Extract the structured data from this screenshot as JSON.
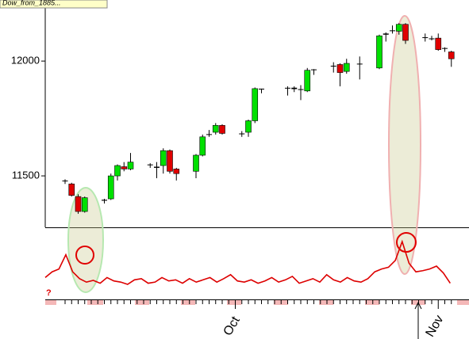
{
  "chart_data": {
    "type": "candlestick",
    "title": "Dow_from_1885...",
    "categories": [
      null,
      null,
      null,
      null,
      null,
      null,
      null,
      null,
      null,
      null,
      null,
      null,
      null,
      null,
      null,
      null,
      null,
      null,
      null,
      null,
      null,
      null,
      null,
      null,
      null,
      null,
      "Oct",
      null,
      null,
      null,
      null,
      null,
      null,
      null,
      null,
      null,
      null,
      null,
      null,
      null,
      null,
      null,
      null,
      null,
      null,
      null,
      null,
      null,
      null,
      null,
      null,
      null,
      null,
      null,
      null,
      null,
      null,
      "Nov",
      null,
      null
    ],
    "open": [
      11475,
      11465,
      11410,
      11345,
      null,
      null,
      11392,
      11400,
      11500,
      11540,
      11530,
      null,
      null,
      11545,
      11540,
      11545,
      11610,
      11530,
      null,
      null,
      11520,
      11590,
      11680,
      11690,
      11720,
      null,
      null,
      11680,
      11690,
      11740,
      11875,
      null,
      null,
      null,
      11880,
      11878,
      11874,
      11870,
      11960,
      null,
      null,
      11975,
      11985,
      11955,
      null,
      11985,
      null,
      null,
      11970,
      12115,
      12130,
      12130,
      12160,
      null,
      null,
      12100,
      12095,
      12100,
      12055,
      12040
    ],
    "high": [
      11485,
      11470,
      11420,
      11410,
      null,
      null,
      11400,
      11510,
      11550,
      11560,
      11600,
      null,
      null,
      11555,
      11560,
      11620,
      11615,
      11535,
      null,
      null,
      11595,
      11680,
      11700,
      11730,
      11725,
      null,
      null,
      11695,
      11745,
      11885,
      11880,
      null,
      null,
      null,
      11890,
      11890,
      11895,
      11970,
      11965,
      null,
      null,
      11995,
      11990,
      12010,
      null,
      12020,
      null,
      null,
      12115,
      12125,
      12155,
      12165,
      12165,
      null,
      null,
      12120,
      12110,
      12120,
      12060,
      12045
    ],
    "low": [
      11465,
      11410,
      11335,
      11340,
      null,
      null,
      11380,
      11395,
      11480,
      11520,
      11525,
      null,
      null,
      11535,
      11490,
      11510,
      11510,
      11480,
      null,
      null,
      11490,
      11585,
      11670,
      11680,
      11680,
      null,
      null,
      11670,
      11670,
      11730,
      11860,
      null,
      null,
      null,
      11850,
      11865,
      11830,
      11865,
      11940,
      null,
      null,
      11950,
      11890,
      11945,
      null,
      11920,
      null,
      null,
      11965,
      12085,
      12120,
      12115,
      12075,
      null,
      null,
      12085,
      12090,
      12045,
      12040,
      11975
    ],
    "close": [
      11478,
      11415,
      11345,
      11405,
      null,
      null,
      11396,
      11500,
      11545,
      11530,
      11560,
      null,
      null,
      11548,
      11535,
      11610,
      11520,
      11510,
      null,
      null,
      11590,
      11670,
      11680,
      11720,
      11685,
      null,
      null,
      11683,
      11740,
      11880,
      11878,
      null,
      null,
      null,
      11882,
      11884,
      11876,
      11960,
      11962,
      null,
      null,
      11978,
      11950,
      11990,
      null,
      11987,
      null,
      null,
      12110,
      12120,
      12132,
      12160,
      12090,
      null,
      null,
      12102,
      12097,
      12050,
      12055,
      12010
    ],
    "up_color": "#00e000",
    "down_color": "#e00000",
    "ylim": [
      11276,
      12266
    ],
    "yticks": [
      11500,
      12000
    ],
    "indicator": {
      "color": "#dd0000",
      "ylim": [
        0,
        100
      ],
      "values": [
        30,
        40,
        45,
        70,
        40,
        28,
        22,
        25,
        20,
        30,
        24,
        22,
        18,
        26,
        28,
        20,
        22,
        30,
        24,
        26,
        20,
        28,
        22,
        26,
        30,
        22,
        28,
        35,
        24,
        22,
        26,
        20,
        24,
        30,
        22,
        26,
        32,
        20,
        24,
        28,
        22,
        35,
        26,
        22,
        30,
        24,
        22,
        28,
        40,
        45,
        48,
        60,
        93,
        55,
        40,
        42,
        45,
        50,
        38,
        20
      ]
    }
  }
}
